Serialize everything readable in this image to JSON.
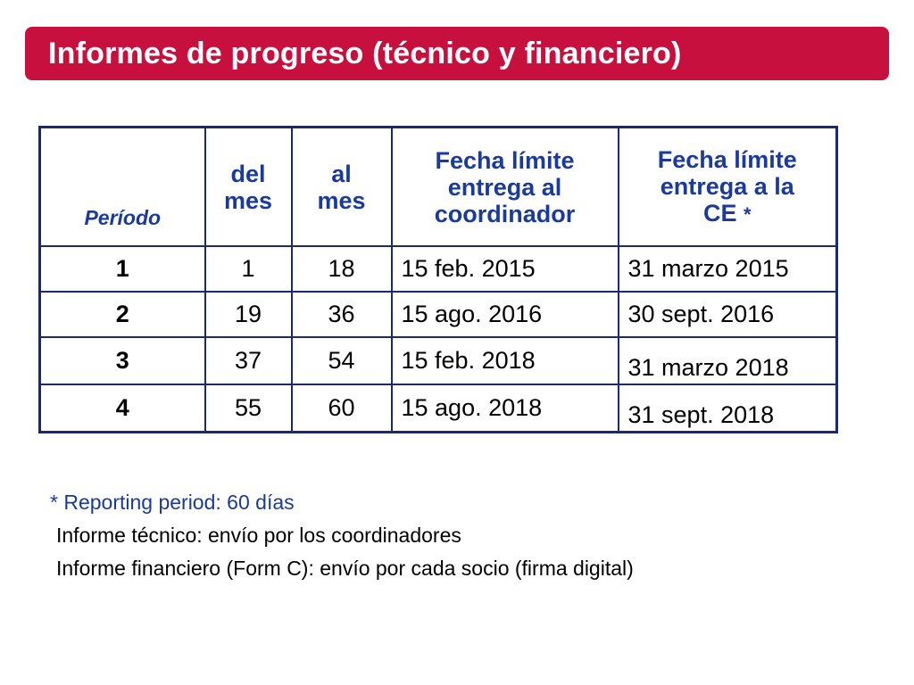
{
  "slide": {
    "title": "Informes de progreso (técnico y financiero)",
    "colors": {
      "title_bar": "#c8103e",
      "header_text": "#1a3a9c",
      "table_border": "#1a2a6c"
    }
  },
  "table": {
    "headers": {
      "periodo": "Período",
      "del_mes_1": "del",
      "del_mes_2": "mes",
      "al_mes_1": "al",
      "al_mes_2": "mes",
      "coord_1": "Fecha límite",
      "coord_2": "entrega al",
      "coord_3": "coordinador",
      "ce_1": "Fecha límite",
      "ce_2": "entrega a la",
      "ce_3": "CE",
      "ce_star": "*"
    },
    "rows": [
      {
        "periodo": "1",
        "del_mes": "1",
        "al_mes": "18",
        "coordinador": "15 feb.  2015",
        "ce": "31 marzo 2015"
      },
      {
        "periodo": "2",
        "del_mes": "19",
        "al_mes": "36",
        "coordinador": "15 ago. 2016",
        "ce": "30 sept.   2016"
      },
      {
        "periodo": "3",
        "del_mes": "37",
        "al_mes": "54",
        "coordinador": "15 feb.  2018",
        "ce": "31 marzo 2018"
      },
      {
        "periodo": "4",
        "del_mes": "55",
        "al_mes": "60",
        "coordinador": "15 ago. 2018",
        "ce": "31 sept.   2018"
      }
    ]
  },
  "notes": {
    "line1": "* Reporting period: 60 días",
    "line2": "Informe técnico: envío por los coordinadores",
    "line3": "Informe financiero (Form C): envío por cada socio (firma digital)"
  }
}
